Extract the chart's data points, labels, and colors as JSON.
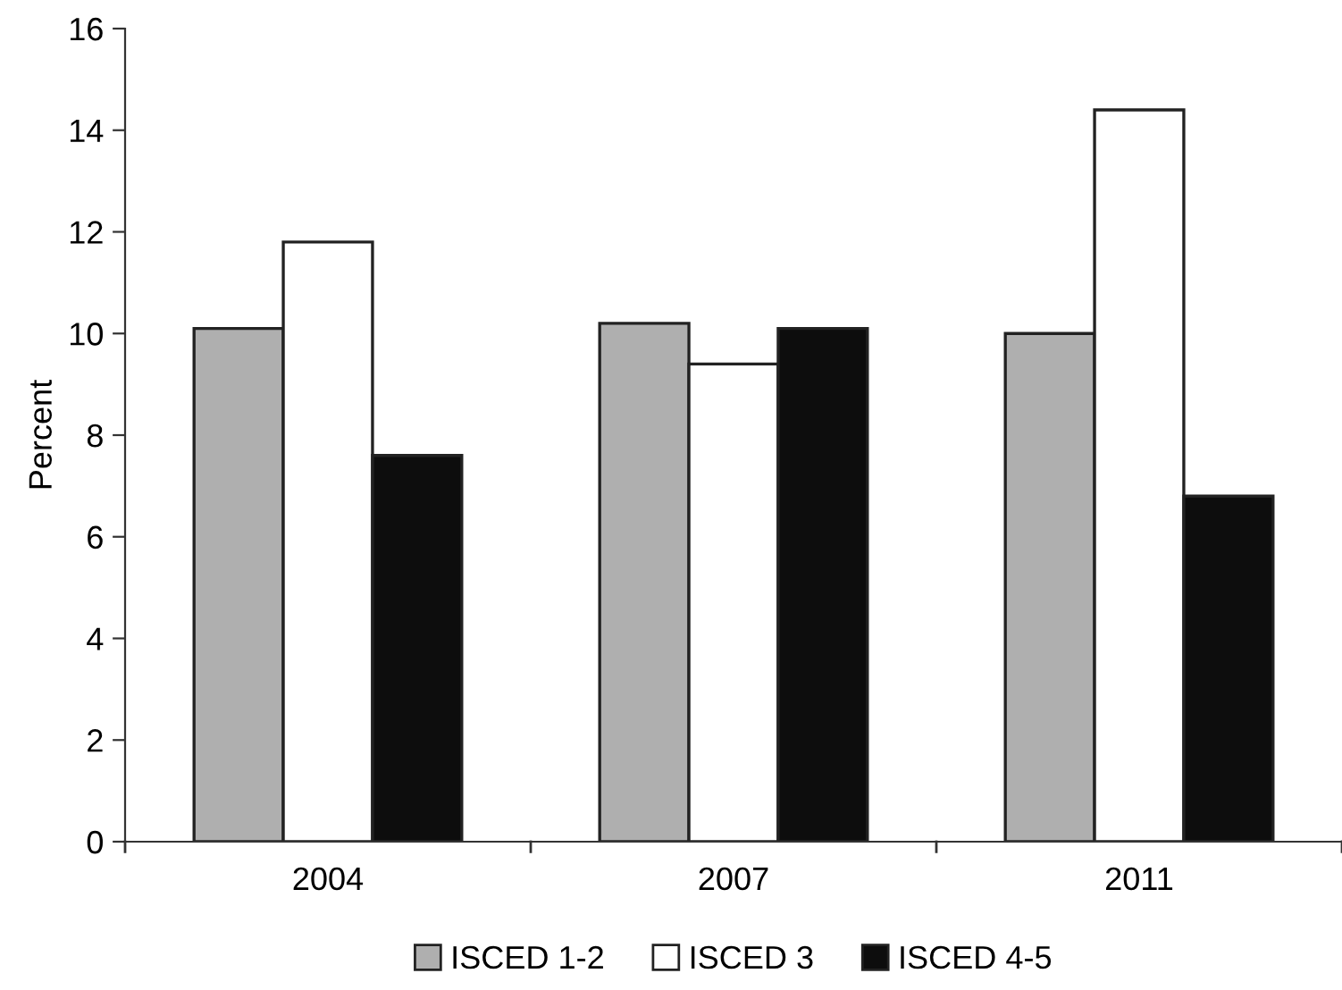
{
  "chart_data": {
    "type": "bar",
    "ylabel": "Percent",
    "categories": [
      "2004",
      "2007",
      "2011"
    ],
    "series": [
      {
        "name": "ISCED 1-2",
        "color": "#afafaf",
        "values": [
          10.1,
          10.2,
          10.0
        ]
      },
      {
        "name": "ISCED 3",
        "color": "#ffffff",
        "values": [
          11.8,
          9.4,
          14.4
        ]
      },
      {
        "name": "ISCED 4-5",
        "color": "#0d0d0d",
        "values": [
          7.6,
          10.1,
          6.8
        ]
      }
    ],
    "ylim": [
      0,
      16
    ],
    "yticks": [
      0,
      2,
      4,
      6,
      8,
      10,
      12,
      14,
      16
    ],
    "grid": false,
    "legend": "bottom"
  }
}
